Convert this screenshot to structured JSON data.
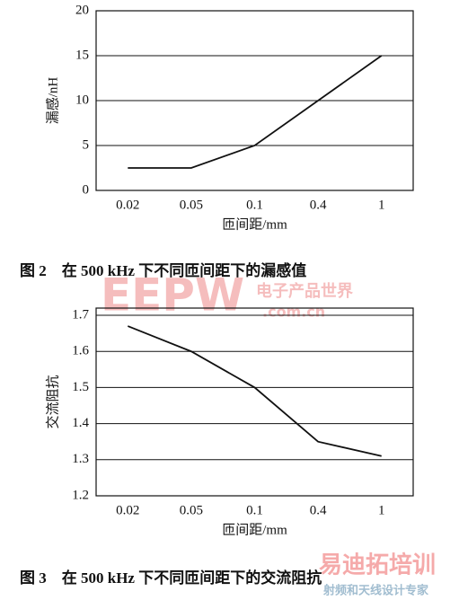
{
  "chart_data": [
    {
      "type": "line",
      "caption": "图 2　在 500 kHz 下不同匝间距下的漏感值",
      "ylabel": "漏感/nH",
      "xlabel": "匝间距/mm",
      "categories": [
        "0.02",
        "0.05",
        "0.1",
        "0.4",
        "1"
      ],
      "values": [
        2.5,
        2.5,
        5,
        10,
        15
      ],
      "color": "#111111",
      "ylim": [
        0,
        20
      ],
      "yticks": [
        0,
        5,
        10,
        15,
        20
      ],
      "grid": true
    },
    {
      "type": "line",
      "caption": "图 3　在 500 kHz 下不同匝间距下的交流阻抗",
      "ylabel": "交流阻抗",
      "xlabel": "匝间距/mm",
      "categories": [
        "0.02",
        "0.05",
        "0.1",
        "0.4",
        "1"
      ],
      "values": [
        1.67,
        1.6,
        1.5,
        1.35,
        1.31
      ],
      "color": "#111111",
      "ylim": [
        1.2,
        1.72
      ],
      "yticks": [
        1.2,
        1.3,
        1.4,
        1.5,
        1.6,
        1.7
      ],
      "grid": true
    }
  ],
  "watermarks": [
    "EEPW",
    "电子产品世界",
    ".com.cn",
    "易迪拓培训",
    "射频和天线设计专家"
  ]
}
